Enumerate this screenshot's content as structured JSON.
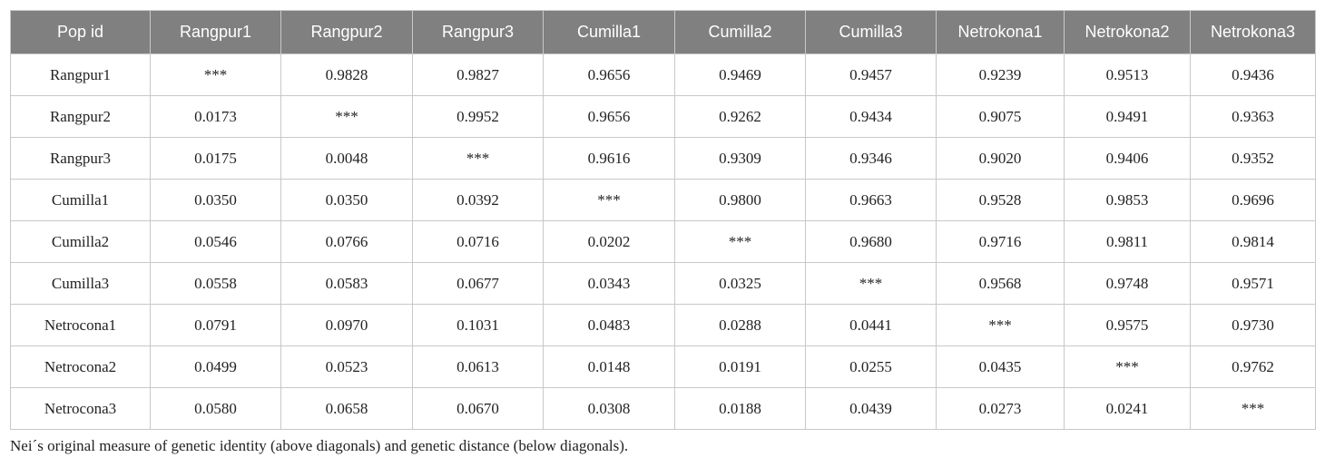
{
  "table": {
    "header": [
      "Pop id",
      "Rangpur1",
      "Rangpur2",
      "Rangpur3",
      "Cumilla1",
      "Cumilla2",
      "Cumilla3",
      "Netrokona1",
      "Netrokona2",
      "Netrokona3"
    ],
    "rows": [
      [
        "Rangpur1",
        "***",
        "0.9828",
        "0.9827",
        "0.9656",
        "0.9469",
        "0.9457",
        "0.9239",
        "0.9513",
        "0.9436"
      ],
      [
        "Rangpur2",
        "0.0173",
        "***",
        "0.9952",
        "0.9656",
        "0.9262",
        "0.9434",
        "0.9075",
        "0.9491",
        "0.9363"
      ],
      [
        "Rangpur3",
        "0.0175",
        "0.0048",
        "***",
        "0.9616",
        "0.9309",
        "0.9346",
        "0.9020",
        "0.9406",
        "0.9352"
      ],
      [
        "Cumilla1",
        "0.0350",
        "0.0350",
        "0.0392",
        "***",
        "0.9800",
        "0.9663",
        "0.9528",
        "0.9853",
        "0.9696"
      ],
      [
        "Cumilla2",
        "0.0546",
        "0.0766",
        "0.0716",
        "0.0202",
        "***",
        "0.9680",
        "0.9716",
        "0.9811",
        "0.9814"
      ],
      [
        "Cumilla3",
        "0.0558",
        "0.0583",
        "0.0677",
        "0.0343",
        "0.0325",
        "***",
        "0.9568",
        "0.9748",
        "0.9571"
      ],
      [
        "Netrocona1",
        "0.0791",
        "0.0970",
        "0.1031",
        "0.0483",
        "0.0288",
        "0.0441",
        "***",
        "0.9575",
        "0.9730"
      ],
      [
        "Netrocona2",
        "0.0499",
        "0.0523",
        "0.0613",
        "0.0148",
        "0.0191",
        "0.0255",
        "0.0435",
        "***",
        "0.9762"
      ],
      [
        "Netrocona3",
        "0.0580",
        "0.0658",
        "0.0670",
        "0.0308",
        "0.0188",
        "0.0439",
        "0.0273",
        "0.0241",
        "***"
      ]
    ]
  },
  "caption": "Nei´s original measure of genetic identity (above diagonals) and genetic distance (below diagonals)."
}
